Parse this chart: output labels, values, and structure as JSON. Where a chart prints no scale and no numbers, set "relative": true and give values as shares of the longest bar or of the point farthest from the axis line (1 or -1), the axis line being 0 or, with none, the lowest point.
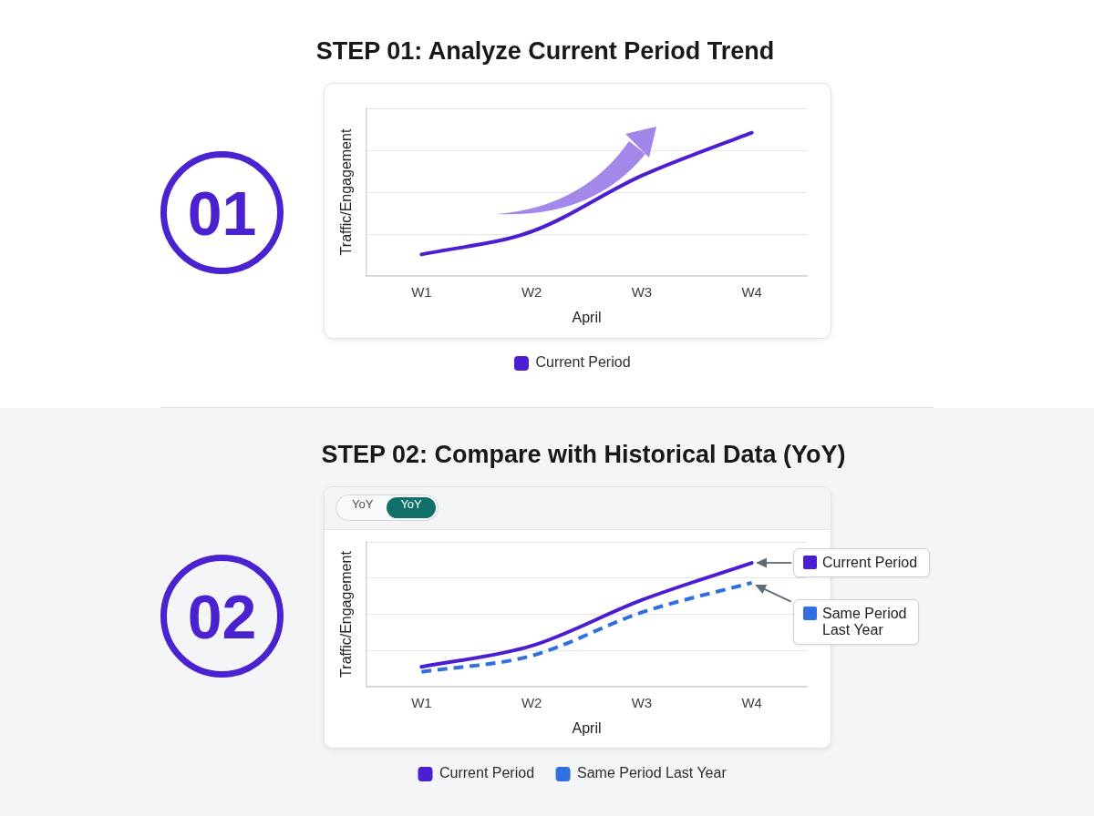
{
  "chart_data": [
    {
      "type": "line",
      "title": "STEP 01: Analyze Current Period Trend",
      "xlabel": "April",
      "ylabel": "Traffic/Engagement",
      "categories": [
        "W1",
        "W2",
        "W3",
        "W4"
      ],
      "relative": true,
      "series": [
        {
          "name": "Current Period",
          "color": "#4b1fd1",
          "values": [
            0.15,
            0.31,
            0.7,
            1
          ]
        }
      ],
      "grid": "y",
      "legend": "bottom",
      "marker": "none",
      "line_style": "solid",
      "annotations": [
        "01"
      ]
    },
    {
      "type": "line",
      "title": "STEP 02: Compare with Historical Data (YoY)",
      "xlabel": "April",
      "ylabel": "Traffic/Engagement",
      "categories": [
        "W1",
        "W2",
        "W3",
        "W4"
      ],
      "relative": true,
      "series": [
        {
          "name": "Current Period",
          "color": "#4b1fd1",
          "values": [
            0.16,
            0.33,
            0.7,
            1
          ]
        },
        {
          "name": "Same Period Last Year",
          "color": "#2f6fe2",
          "values": [
            0.12,
            0.25,
            0.6,
            0.84
          ],
          "line_style": "dashed"
        }
      ],
      "grid": "y",
      "legend": "bottom",
      "marker": "none",
      "line_style": "solid",
      "annotations": [
        "02",
        "YoY",
        "YoY",
        "Current Period",
        "Same Period Last Year"
      ]
    }
  ]
}
